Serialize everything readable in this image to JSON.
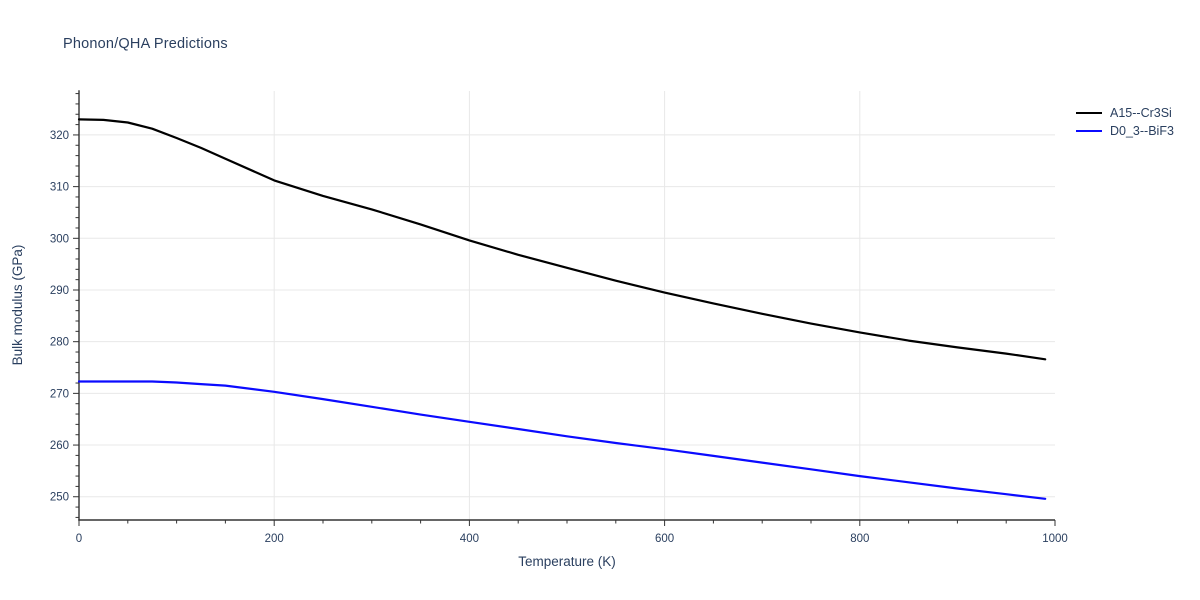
{
  "title": "Phonon/QHA Predictions",
  "colors": {
    "text": "#2a3f5f",
    "grid": "#e8e8e8",
    "axis": "#333333",
    "background": "#ffffff",
    "series_a15": "#000000",
    "series_d03": "#0b0bff"
  },
  "chart_data": {
    "type": "line",
    "title": "Phonon/QHA Predictions",
    "xlabel": "Temperature (K)",
    "ylabel": "Bulk modulus (GPa)",
    "xlim": [
      0,
      1000
    ],
    "ylim": [
      245.5,
      328.5
    ],
    "x_major_ticks": [
      0,
      200,
      400,
      600,
      800,
      1000
    ],
    "y_major_ticks": [
      250,
      260,
      270,
      280,
      290,
      300,
      310,
      320
    ],
    "x_minor_step": 50,
    "y_minor_step": 2,
    "grid": "on",
    "legend_position": "top-right-outside",
    "x": [
      0,
      25,
      50,
      75,
      100,
      125,
      150,
      200,
      250,
      300,
      350,
      400,
      450,
      500,
      550,
      600,
      650,
      700,
      750,
      800,
      850,
      900,
      950,
      990
    ],
    "series": [
      {
        "name": "A15--Cr3Si",
        "color": "#000000",
        "values": [
          323.0,
          322.9,
          322.4,
          321.2,
          319.4,
          317.5,
          315.4,
          311.2,
          308.2,
          305.6,
          302.7,
          299.6,
          296.8,
          294.3,
          291.8,
          289.5,
          287.4,
          285.4,
          283.5,
          281.8,
          280.2,
          278.9,
          277.7,
          276.6
        ]
      },
      {
        "name": "D0_3--BiF3",
        "color": "#0b0bff",
        "values": [
          272.3,
          272.3,
          272.3,
          272.3,
          272.1,
          271.8,
          271.5,
          270.3,
          268.9,
          267.4,
          265.9,
          264.5,
          263.1,
          261.7,
          260.4,
          259.2,
          257.9,
          256.6,
          255.3,
          254.0,
          252.8,
          251.6,
          250.5,
          249.6
        ]
      }
    ]
  }
}
